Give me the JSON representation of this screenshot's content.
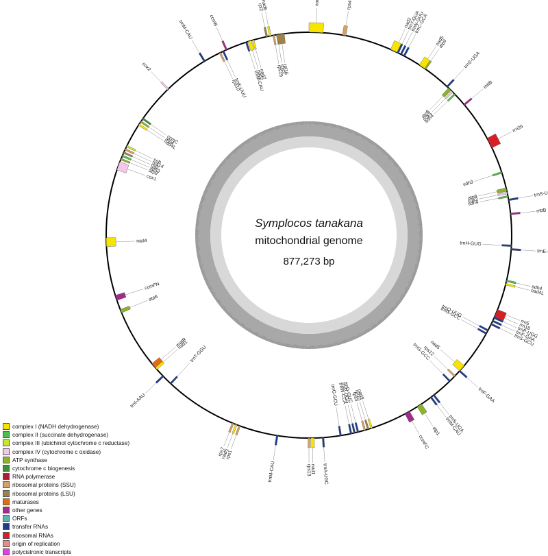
{
  "center": {
    "title": "Symplocos tanakana",
    "subtitle": "mitochondrial genome",
    "length": "877,273 bp"
  },
  "legend": [
    {
      "label": "complex I (NADH dehydrogenase)",
      "color": "#f7e400"
    },
    {
      "label": "complex II (succinate dehydrogenase)",
      "color": "#4cc04c"
    },
    {
      "label": "complex III (ubichinol cytochrome c reductase)",
      "color": "#c7e82a"
    },
    {
      "label": "complex IV (cytochrome c oxidase)",
      "color": "#f4c6e8"
    },
    {
      "label": "ATP synthase",
      "color": "#8cb32a"
    },
    {
      "label": "cytochrome c biogenesis",
      "color": "#3f8f34"
    },
    {
      "label": "RNA polymerase",
      "color": "#b0193a"
    },
    {
      "label": "ribosomal proteins (SSU)",
      "color": "#d9a066"
    },
    {
      "label": "ribosomal proteins (LSU)",
      "color": "#9d8446"
    },
    {
      "label": "maturases",
      "color": "#e36b10"
    },
    {
      "label": "other genes",
      "color": "#a02c8c"
    },
    {
      "label": "ORFs",
      "color": "#5fb3b3"
    },
    {
      "label": "transfer RNAs",
      "color": "#1f3c8c"
    },
    {
      "label": "ribosomal RNAs",
      "color": "#d81f26"
    },
    {
      "label": "origin of replication",
      "color": "#f08a8a"
    },
    {
      "label": "polycistronic transcripts",
      "color": "#e040e0"
    }
  ],
  "genes": [
    {
      "label": "nad7",
      "angle": 2,
      "dir": "out",
      "cat": 0,
      "width": 4
    },
    {
      "label": "rps4",
      "angle": 10,
      "dir": "out",
      "cat": 7,
      "width": 1
    },
    {
      "label": "nad2",
      "angle": 25,
      "dir": "out",
      "cat": 0,
      "width": 2.5
    },
    {
      "label": "trnY-GUA",
      "angle": 26,
      "dir": "out",
      "cat": 12,
      "width": 0.5
    },
    {
      "label": "trnN-GUU",
      "angle": 27,
      "dir": "out",
      "cat": 12,
      "width": 0.5
    },
    {
      "label": "trnC-GCA",
      "angle": 28,
      "dir": "out",
      "cat": 12,
      "width": 0.5
    },
    {
      "label": "nad5",
      "angle": 34,
      "dir": "out",
      "cat": 0,
      "width": 2
    },
    {
      "label": "atp9",
      "angle": 35,
      "dir": "out",
      "cat": 4,
      "width": 0.5
    },
    {
      "label": "trnS-UGA",
      "angle": 43,
      "dir": "out",
      "cat": 12,
      "width": 0.5
    },
    {
      "label": "atp8",
      "angle": 44,
      "dir": "in",
      "cat": 4,
      "width": 1
    },
    {
      "label": "cox3",
      "angle": 45,
      "dir": "in",
      "cat": 3,
      "width": 0.5
    },
    {
      "label": "sdh4",
      "angle": 46,
      "dir": "in",
      "cat": 1,
      "width": 0.5
    },
    {
      "label": "mttB",
      "angle": 50,
      "dir": "out",
      "cat": 10,
      "width": 0.5
    },
    {
      "label": "rrn26",
      "angle": 63,
      "dir": "out",
      "cat": 13,
      "width": 3
    },
    {
      "label": "sdh3",
      "angle": 72,
      "dir": "in",
      "cat": 1,
      "width": 0.5
    },
    {
      "label": "atp8",
      "angle": 77,
      "dir": "in",
      "cat": 4,
      "width": 1
    },
    {
      "label": "cox3",
      "angle": 78,
      "dir": "in",
      "cat": 3,
      "width": 0.5
    },
    {
      "label": "sdh4",
      "angle": 79,
      "dir": "in",
      "cat": 1,
      "width": 0.5
    },
    {
      "label": "trnS-UGA",
      "angle": 80,
      "dir": "out",
      "cat": 12,
      "width": 0.5
    },
    {
      "label": "mttB",
      "angle": 84,
      "dir": "out",
      "cat": 10,
      "width": 0.5
    },
    {
      "label": "trnH-GUG",
      "angle": 93,
      "dir": "in",
      "cat": 12,
      "width": 0.5
    },
    {
      "label": "trnE-UUC",
      "angle": 94,
      "dir": "out",
      "cat": 12,
      "width": 0.5
    },
    {
      "label": "sdh4",
      "angle": 103,
      "dir": "out",
      "cat": 1,
      "width": 0.5
    },
    {
      "label": "nad4L",
      "angle": 104,
      "dir": "out",
      "cat": 0,
      "width": 0.5
    },
    {
      "label": "rrn5",
      "angle": 112,
      "dir": "out",
      "cat": 13,
      "width": 1
    },
    {
      "label": "rrn18",
      "angle": 113,
      "dir": "out",
      "cat": 13,
      "width": 1.5
    },
    {
      "label": "trnP-UGG",
      "angle": 114,
      "dir": "out",
      "cat": 12,
      "width": 0.5
    },
    {
      "label": "trnF-GAA",
      "angle": 115,
      "dir": "out",
      "cat": 12,
      "width": 0.5
    },
    {
      "label": "trnS-GCU",
      "angle": 116,
      "dir": "out",
      "cat": 12,
      "width": 0.5
    },
    {
      "label": "trnQ-UUG",
      "angle": 118,
      "dir": "in",
      "cat": 12,
      "width": 0.5
    },
    {
      "label": "trnG-GCC",
      "angle": 119,
      "dir": "in",
      "cat": 12,
      "width": 0.5
    },
    {
      "label": "nad5",
      "angle": 131,
      "dir": "in",
      "cat": 0,
      "width": 2
    },
    {
      "label": "trnF-GAA",
      "angle": 132,
      "dir": "out",
      "cat": 12,
      "width": 0.5
    },
    {
      "label": "rps12",
      "angle": 134,
      "dir": "in",
      "cat": 7,
      "width": 0.5
    },
    {
      "label": "trnG-GCC",
      "angle": 136,
      "dir": "in",
      "cat": 12,
      "width": 0.5
    },
    {
      "label": "trnS-UGA",
      "angle": 142,
      "dir": "out",
      "cat": 12,
      "width": 0.5
    },
    {
      "label": "trnM-CAU",
      "angle": 143,
      "dir": "out",
      "cat": 12,
      "width": 0.5
    },
    {
      "label": "atp1",
      "angle": 147,
      "dir": "out",
      "cat": 4,
      "width": 1.5
    },
    {
      "label": "ccmFC",
      "angle": 151,
      "dir": "out",
      "cat": 10,
      "width": 1.5
    },
    {
      "label": "nad9",
      "angle": 162,
      "dir": "in",
      "cat": 0,
      "width": 0.5
    },
    {
      "label": "rpl10",
      "angle": 163,
      "dir": "in",
      "cat": 8,
      "width": 0.5
    },
    {
      "label": "rps3",
      "angle": 164,
      "dir": "in",
      "cat": 7,
      "width": 0.5
    },
    {
      "label": "trnD-GUC",
      "angle": 166,
      "dir": "in",
      "cat": 12,
      "width": 0.5
    },
    {
      "label": "trnP-UGG",
      "angle": 167,
      "dir": "in",
      "cat": 12,
      "width": 0.5
    },
    {
      "label": "trnW-CCA",
      "angle": 168,
      "dir": "in",
      "cat": 12,
      "width": 0.5
    },
    {
      "label": "trnG-GCU",
      "angle": 171,
      "dir": "in",
      "cat": 12,
      "width": 0.5
    },
    {
      "label": "trnA-UGC",
      "angle": 176,
      "dir": "out",
      "cat": 12,
      "width": 0.5
    },
    {
      "label": "nad1",
      "angle": 179,
      "dir": "out",
      "cat": 0,
      "width": 1
    },
    {
      "label": "rps13",
      "angle": 180,
      "dir": "out",
      "cat": 7,
      "width": 0.5
    },
    {
      "label": "trnM-CAU",
      "angle": 189,
      "dir": "out",
      "cat": 12,
      "width": 0.5
    },
    {
      "label": "rps1",
      "angle": 200,
      "dir": "out",
      "cat": 7,
      "width": 0.5
    },
    {
      "label": "nad5",
      "angle": 201,
      "dir": "out",
      "cat": 0,
      "width": 0.5
    },
    {
      "label": "rps7",
      "angle": 202,
      "dir": "out",
      "cat": 7,
      "width": 0.5
    },
    {
      "label": "trnT-GGU",
      "angle": 223,
      "dir": "in",
      "cat": 12,
      "width": 0.5
    },
    {
      "label": "trnI-AAU",
      "angle": 226,
      "dir": "out",
      "cat": 12,
      "width": 0.5
    },
    {
      "label": "nad1",
      "angle": 229,
      "dir": "in",
      "cat": 0,
      "width": 1
    },
    {
      "label": "matR",
      "angle": 230,
      "dir": "in",
      "cat": 9,
      "width": 1.5
    },
    {
      "label": "atp6",
      "angle": 248,
      "dir": "in",
      "cat": 4,
      "width": 1
    },
    {
      "label": "ccmFN",
      "angle": 252,
      "dir": "in",
      "cat": 10,
      "width": 1.5
    },
    {
      "label": "nad4",
      "angle": 268,
      "dir": "in",
      "cat": 0,
      "width": 2.5
    },
    {
      "label": "cox1",
      "angle": 290,
      "dir": "in",
      "cat": 3,
      "width": 2.5
    },
    {
      "label": "atp9",
      "angle": 292,
      "dir": "in",
      "cat": 4,
      "width": 0.5
    },
    {
      "label": "sdh3",
      "angle": 293,
      "dir": "in",
      "cat": 1,
      "width": 0.5
    },
    {
      "label": "rpl5",
      "angle": 294,
      "dir": "in",
      "cat": 8,
      "width": 0.5
    },
    {
      "label": "rps14",
      "angle": 295,
      "dir": "in",
      "cat": 7,
      "width": 0.5
    },
    {
      "label": "cob",
      "angle": 296,
      "dir": "in",
      "cat": 2,
      "width": 0.5
    },
    {
      "label": "nad4L",
      "angle": 303,
      "dir": "in",
      "cat": 0,
      "width": 0.5
    },
    {
      "label": "atp4",
      "angle": 304,
      "dir": "in",
      "cat": 4,
      "width": 0.5
    },
    {
      "label": "ccmC",
      "angle": 305,
      "dir": "in",
      "cat": 5,
      "width": 0.5
    },
    {
      "label": "cox2",
      "angle": 316,
      "dir": "out",
      "cat": 3,
      "width": 0.5
    },
    {
      "label": "trnM-CAU",
      "angle": 329,
      "dir": "out",
      "cat": 12,
      "width": 0.5
    },
    {
      "label": "rps10",
      "angle": 334,
      "dir": "in",
      "cat": 7,
      "width": 0.5
    },
    {
      "label": "trnK-UUU",
      "angle": 335,
      "dir": "in",
      "cat": 12,
      "width": 0.5
    },
    {
      "label": "ccmB",
      "angle": 336,
      "dir": "out",
      "cat": 10,
      "width": 0.5
    },
    {
      "label": "trnM-CAU",
      "angle": 342,
      "dir": "in",
      "cat": 12,
      "width": 0.5
    },
    {
      "label": "nad2",
      "angle": 343,
      "dir": "in",
      "cat": 0,
      "width": 1
    },
    {
      "label": "nad7",
      "angle": 344,
      "dir": "in",
      "cat": 0,
      "width": 0.5
    },
    {
      "label": "rpl2",
      "angle": 348,
      "dir": "out",
      "cat": 8,
      "width": 0.5
    },
    {
      "label": "nad6",
      "angle": 349,
      "dir": "out",
      "cat": 0,
      "width": 0.5
    },
    {
      "label": "rps19",
      "angle": 350,
      "dir": "in",
      "cat": 7,
      "width": 0.5
    },
    {
      "label": "rps3",
      "angle": 351,
      "dir": "in",
      "cat": 7,
      "width": 0.5
    },
    {
      "label": "rpl16",
      "angle": 352,
      "dir": "in",
      "cat": 8,
      "width": 2
    }
  ]
}
